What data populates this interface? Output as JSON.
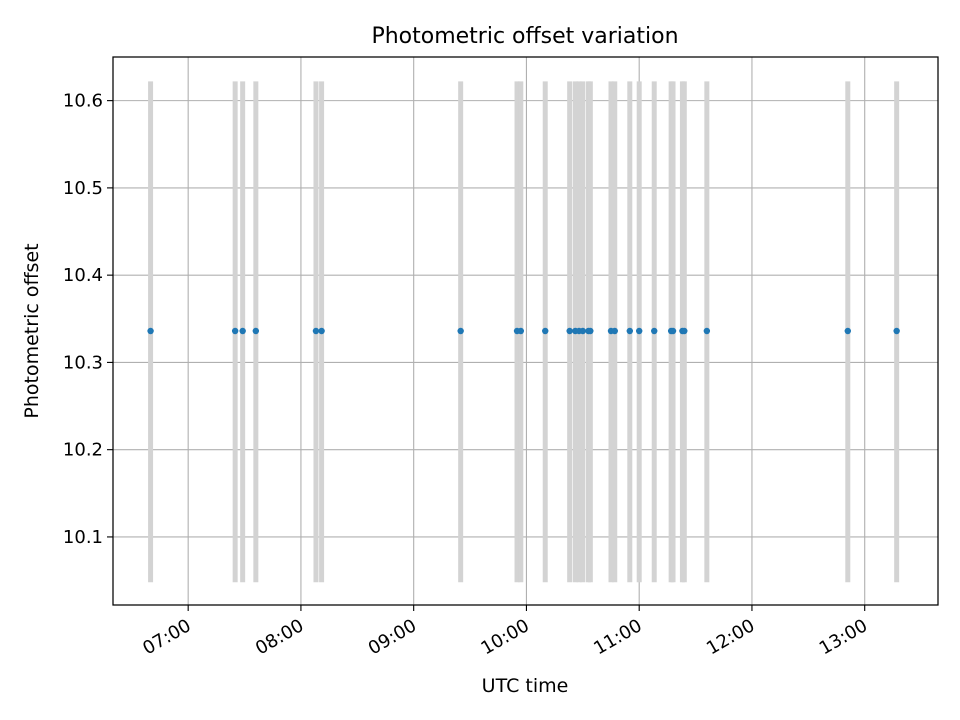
{
  "chart_data": {
    "type": "scatter",
    "title": "Photometric offset variation",
    "xlabel": "UTC time",
    "ylabel": "Photometric offset",
    "xlim": [
      "06:20",
      "13:39"
    ],
    "ylim": [
      10.022,
      10.65
    ],
    "x_ticks": [
      "07:00",
      "08:00",
      "09:00",
      "10:00",
      "11:00",
      "12:00",
      "13:00"
    ],
    "y_ticks": [
      "10.1",
      "10.2",
      "10.3",
      "10.4",
      "10.5",
      "10.6"
    ],
    "grid": true,
    "vline_range": [
      10.048,
      10.622
    ],
    "series": [
      {
        "marker_color": "#1f77b4",
        "line_color": "#d3d3d3",
        "x": [
          "06:40",
          "07:25",
          "07:29",
          "07:36",
          "08:08",
          "08:11",
          "09:25",
          "09:55",
          "09:57",
          "10:10",
          "10:23",
          "10:26",
          "10:28",
          "10:30",
          "10:33",
          "10:34",
          "10:45",
          "10:47",
          "10:55",
          "11:00",
          "11:08",
          "11:17",
          "11:18",
          "11:23",
          "11:24",
          "11:36",
          "12:51",
          "13:17"
        ],
        "y": [
          10.336,
          10.336,
          10.336,
          10.336,
          10.336,
          10.336,
          10.336,
          10.336,
          10.336,
          10.336,
          10.336,
          10.336,
          10.336,
          10.336,
          10.336,
          10.336,
          10.336,
          10.336,
          10.336,
          10.336,
          10.336,
          10.336,
          10.336,
          10.336,
          10.336,
          10.336,
          10.336,
          10.336
        ]
      }
    ]
  }
}
